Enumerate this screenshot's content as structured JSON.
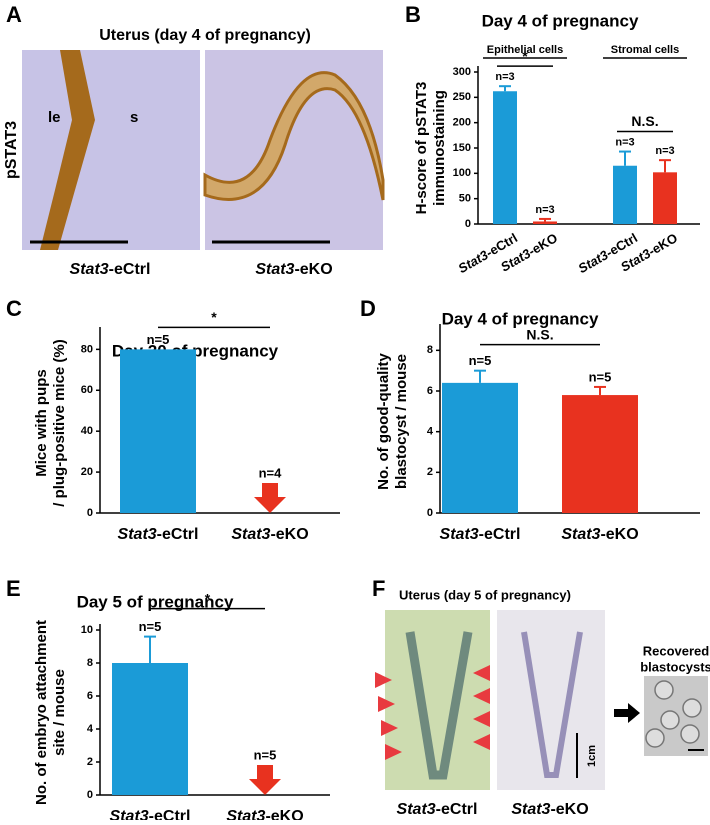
{
  "panel_a": {
    "label": "A",
    "title": "Uterus (day 4 of pregnancy)",
    "stain": "pSTAT3",
    "regions": [
      "le",
      "s"
    ],
    "captions": [
      "Stat3-eCtrl",
      "Stat3-eKO"
    ]
  },
  "chart_data": [
    {
      "label": "B",
      "type": "bar",
      "title": "Day 4 of pregnancy",
      "groups": [
        "Epithelial cells",
        "Stromal cells"
      ],
      "significance": [
        "*",
        "N.S."
      ],
      "y_label": [
        "H-score of pSTAT3",
        "immunostaining"
      ],
      "categories": [
        "Stat3-eCtrl",
        "Stat3-eKO",
        "Stat3-eCtrl",
        "Stat3-eKO"
      ],
      "values": [
        262,
        5,
        115,
        102
      ],
      "errors": [
        10,
        5,
        28,
        24
      ],
      "n_labels": [
        "n=3",
        "n=3",
        "n=3",
        "n=3"
      ],
      "colors": [
        "#1b9bd7",
        "#e8321f",
        "#1b9bd7",
        "#e8321f"
      ],
      "ylim": [
        0,
        300
      ],
      "yticks": [
        0,
        50,
        100,
        150,
        200,
        250,
        300
      ]
    },
    {
      "label": "C",
      "type": "bar",
      "title": "Day 20 of pregnancy",
      "significance": [
        "*"
      ],
      "y_label": [
        "Mice with pups",
        "/ plug-positive mice (%)"
      ],
      "categories": [
        "Stat3-eCtrl",
        "Stat3-eKO"
      ],
      "values": [
        80,
        0
      ],
      "errors": [
        0,
        0
      ],
      "n_labels": [
        "n=5",
        "n=4"
      ],
      "colors": [
        "#1b9bd7",
        "#e8321f"
      ],
      "ylim": [
        0,
        88
      ],
      "yticks": [
        0,
        20,
        40,
        60,
        80
      ]
    },
    {
      "label": "D",
      "type": "bar",
      "title": "Day 4 of pregnancy",
      "significance": [
        "N.S."
      ],
      "y_label": [
        "No. of good-quality",
        "blastocyst / mouse"
      ],
      "categories": [
        "Stat3-eCtrl",
        "Stat3-eKO"
      ],
      "values": [
        6.4,
        5.8
      ],
      "errors": [
        0.6,
        0.4
      ],
      "n_labels": [
        "n=5",
        "n=5"
      ],
      "colors": [
        "#1b9bd7",
        "#e8321f"
      ],
      "ylim": [
        0,
        9
      ],
      "yticks": [
        0,
        2,
        4,
        6,
        8
      ]
    },
    {
      "label": "E",
      "type": "bar",
      "title": "Day 5 of pregnancy",
      "significance": [
        "*"
      ],
      "y_label": [
        "No. of embryo attachment",
        "site / mouse"
      ],
      "categories": [
        "Stat3-eCtrl",
        "Stat3-eKO"
      ],
      "values": [
        8,
        0
      ],
      "errors": [
        1.6,
        0
      ],
      "n_labels": [
        "n=5",
        "n=5"
      ],
      "colors": [
        "#1b9bd7",
        "#e8321f"
      ],
      "ylim": [
        0,
        10
      ],
      "yticks": [
        0,
        2,
        4,
        6,
        8,
        10
      ]
    }
  ],
  "panel_f": {
    "label": "F",
    "title": "Uterus (day 5 of pregnancy)",
    "captions": [
      "Stat3-eCtrl",
      "Stat3-eKO"
    ],
    "scale": "1cm",
    "recovered": [
      "Recovered",
      "blastocysts"
    ]
  }
}
